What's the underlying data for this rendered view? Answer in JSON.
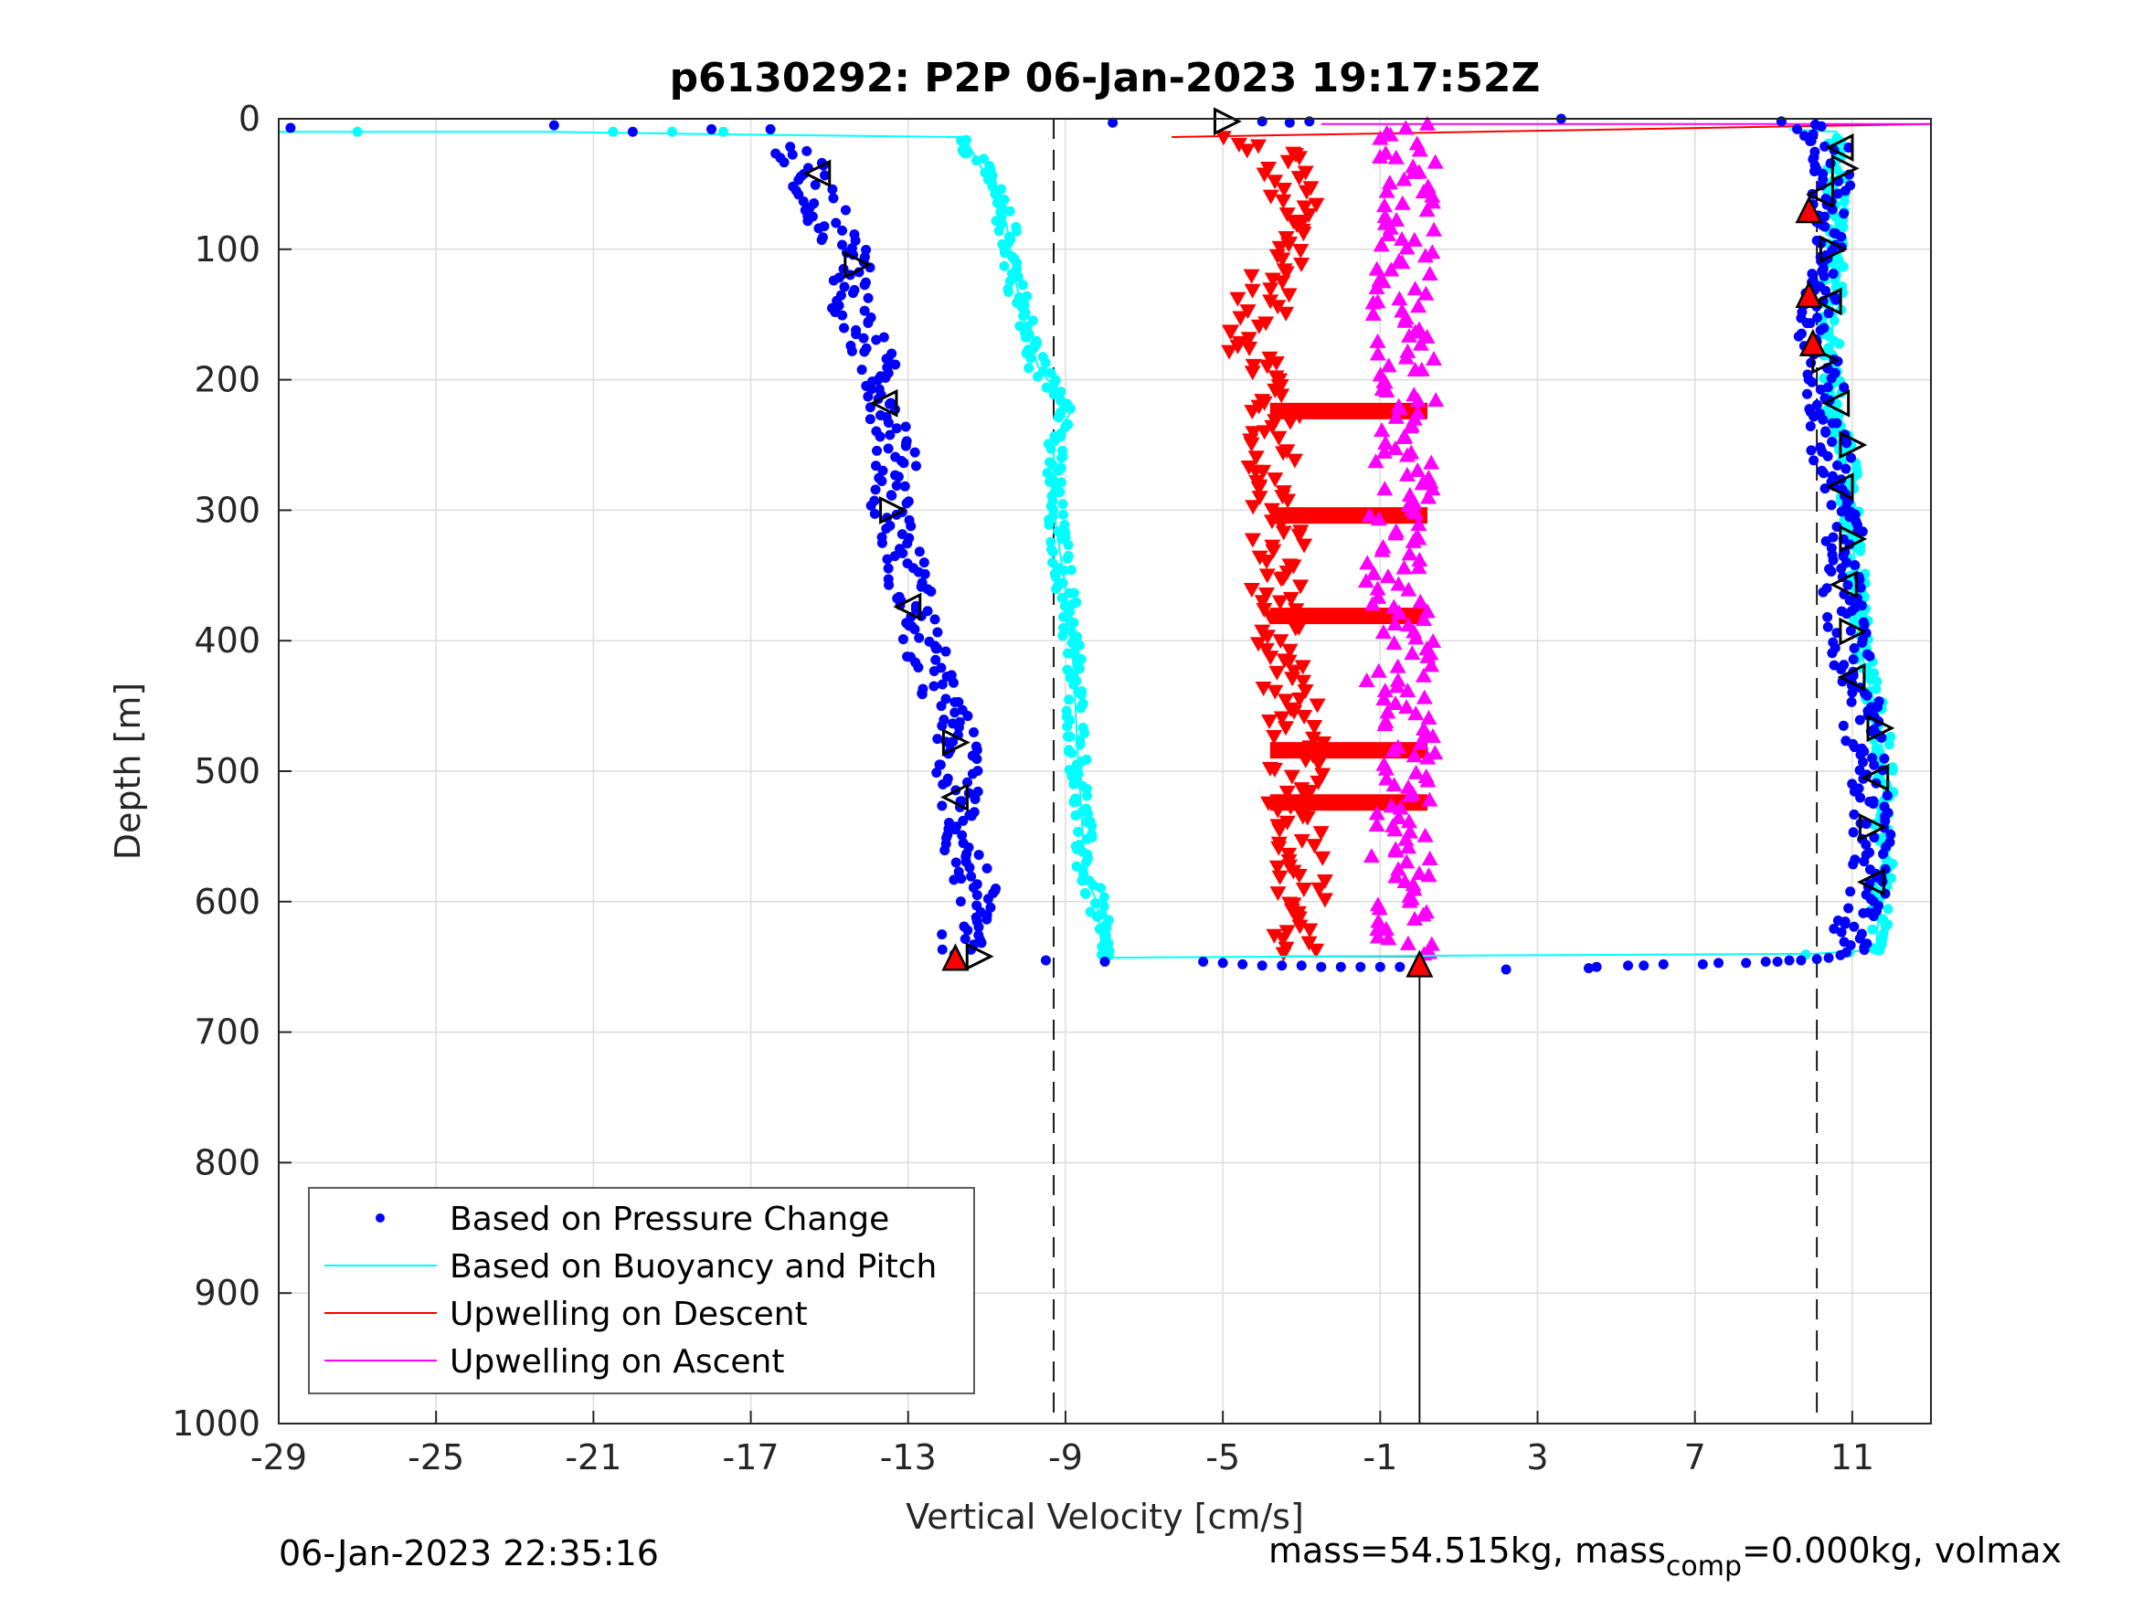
{
  "chart_data": {
    "type": "scatter",
    "title": "p6130292: P2P 06-Jan-2023 19:17:52Z",
    "xlabel": "Vertical Velocity [cm/s]",
    "ylabel": "Depth [m]",
    "xlim": [
      -29,
      13
    ],
    "ylim": [
      0,
      1000
    ],
    "y_reversed": true,
    "grid": true,
    "x_ticks": [
      -29,
      -25,
      -21,
      -17,
      -13,
      -9,
      -5,
      -1,
      3,
      7,
      11
    ],
    "y_ticks": [
      0,
      100,
      200,
      300,
      400,
      500,
      600,
      700,
      800,
      900,
      1000
    ],
    "legend_placement": "bottom-left",
    "colors": {
      "pressure": "#0000ff",
      "buoyancy": "#00ffff",
      "upwell_descent": "#ff0000",
      "upwell_ascent": "#ff00ff"
    },
    "reference_lines": {
      "dashed_x": [
        -9.3,
        10.1
      ],
      "solid_x": [
        0
      ],
      "solid_x_depth_range": [
        645,
        1000
      ]
    },
    "series": [
      {
        "name": "Based on Pressure Change",
        "descent": [
          [
            -28.7,
            7
          ],
          [
            -22,
            5
          ],
          [
            -20,
            10
          ],
          [
            -18,
            8
          ],
          [
            -16.5,
            8
          ],
          [
            -16,
            22
          ],
          [
            -15.5,
            45
          ],
          [
            -15,
            80
          ],
          [
            -14.5,
            100
          ],
          [
            -14.3,
            115
          ],
          [
            -14.5,
            145
          ],
          [
            -14,
            175
          ],
          [
            -13.7,
            200
          ],
          [
            -13.5,
            215
          ],
          [
            -13.3,
            250
          ],
          [
            -13.4,
            300
          ],
          [
            -13,
            350
          ],
          [
            -12.8,
            380
          ],
          [
            -12.5,
            420
          ],
          [
            -11.8,
            470
          ],
          [
            -11.7,
            520
          ],
          [
            -11.6,
            560
          ],
          [
            -11.3,
            590
          ],
          [
            -11.6,
            620
          ],
          [
            -11.7,
            640
          ]
        ],
        "ascent": [
          [
            -5.5,
            646
          ],
          [
            -3,
            648
          ],
          [
            0,
            650
          ],
          [
            2.2,
            650
          ],
          [
            4.5,
            649
          ],
          [
            7,
            648
          ],
          [
            9.5,
            646
          ],
          [
            10.9,
            640
          ],
          [
            10.9,
            620
          ],
          [
            11.4,
            600
          ],
          [
            11.5,
            550
          ],
          [
            11.4,
            500
          ],
          [
            11.2,
            450
          ],
          [
            10.9,
            400
          ],
          [
            10.7,
            350
          ],
          [
            10.8,
            300
          ],
          [
            10.4,
            250
          ],
          [
            10.3,
            200
          ],
          [
            10,
            160
          ],
          [
            10.2,
            120
          ],
          [
            10.3,
            80
          ],
          [
            10.5,
            50
          ],
          [
            10.5,
            20
          ],
          [
            9.7,
            5
          ]
        ]
      },
      {
        "name": "Based on Buoyancy and Pitch",
        "descent": [
          [
            -29,
            10
          ],
          [
            -22,
            10
          ],
          [
            -17.5,
            12
          ],
          [
            -11.7,
            14
          ],
          [
            -11.5,
            18
          ],
          [
            -11,
            45
          ],
          [
            -10.5,
            80
          ],
          [
            -10.3,
            120
          ],
          [
            -10,
            160
          ],
          [
            -9.7,
            190
          ],
          [
            -9.2,
            210
          ],
          [
            -8.8,
            220
          ],
          [
            -9.3,
            250
          ],
          [
            -9.3,
            300
          ],
          [
            -9.1,
            340
          ],
          [
            -8.9,
            380
          ],
          [
            -8.8,
            420
          ],
          [
            -8.7,
            480
          ],
          [
            -8.6,
            530
          ],
          [
            -8.5,
            580
          ],
          [
            -8.2,
            600
          ],
          [
            -8.1,
            630
          ],
          [
            -8.0,
            643
          ],
          [
            -3,
            642
          ],
          [
            3,
            641
          ],
          [
            10,
            640
          ],
          [
            11.6,
            637
          ]
        ],
        "ascent": [
          [
            11.6,
            637
          ],
          [
            11.7,
            600
          ],
          [
            11.8,
            560
          ],
          [
            11.8,
            500
          ],
          [
            11.7,
            460
          ],
          [
            11.3,
            420
          ],
          [
            11.2,
            380
          ],
          [
            11.0,
            320
          ],
          [
            10.9,
            270
          ],
          [
            10.5,
            220
          ],
          [
            10.5,
            180
          ],
          [
            10.5,
            140
          ],
          [
            10.6,
            100
          ],
          [
            10.6,
            60
          ],
          [
            10.6,
            30
          ],
          [
            10.6,
            10
          ],
          [
            9.4,
            8
          ]
        ]
      },
      {
        "name": "Upwelling on Descent",
        "profile": [
          [
            -5.2,
            15
          ],
          [
            -3.5,
            25
          ],
          [
            -3.3,
            60
          ],
          [
            -3.2,
            100
          ],
          [
            -4.0,
            140
          ],
          [
            -4.3,
            170
          ],
          [
            -3.8,
            200
          ],
          [
            -3.7,
            230
          ],
          [
            -3.8,
            280
          ],
          [
            -3.6,
            320
          ],
          [
            -3.6,
            360
          ],
          [
            -3.5,
            400
          ],
          [
            -3.3,
            440
          ],
          [
            -3.1,
            480
          ],
          [
            -3.2,
            520
          ],
          [
            -2.9,
            560
          ],
          [
            -3.0,
            600
          ],
          [
            -3.3,
            640
          ]
        ],
        "horizontal_bands_depth": [
          224,
          304,
          381,
          484,
          524
        ],
        "band_x_range": [
          -3.8,
          0.2
        ]
      },
      {
        "name": "Upwelling on Ascent",
        "profile": [
          [
            -0.4,
            640
          ],
          [
            -0.6,
            600
          ],
          [
            -0.4,
            560
          ],
          [
            -0.4,
            520
          ],
          [
            -0.2,
            480
          ],
          [
            -0.6,
            440
          ],
          [
            -0.4,
            400
          ],
          [
            -0.7,
            360
          ],
          [
            -0.7,
            320
          ],
          [
            -0.4,
            280
          ],
          [
            -0.2,
            240
          ],
          [
            -0.2,
            200
          ],
          [
            -0.4,
            160
          ],
          [
            -0.4,
            120
          ],
          [
            -0.4,
            80
          ],
          [
            -0.3,
            40
          ],
          [
            -0.2,
            5
          ]
        ]
      }
    ],
    "triangle_markers": [
      {
        "x": -15.3,
        "y": 42,
        "dir": "left"
      },
      {
        "x": -14.3,
        "y": 112,
        "dir": "right"
      },
      {
        "x": -13.6,
        "y": 218,
        "dir": "left"
      },
      {
        "x": -13.4,
        "y": 300,
        "dir": "right"
      },
      {
        "x": -13.0,
        "y": 374,
        "dir": "left"
      },
      {
        "x": -11.8,
        "y": 478,
        "dir": "right"
      },
      {
        "x": -11.8,
        "y": 520,
        "dir": "left"
      },
      {
        "x": -11.2,
        "y": 642,
        "dir": "right"
      },
      {
        "x": -4.9,
        "y": 2,
        "dir": "right"
      },
      {
        "x": 10.7,
        "y": 22,
        "dir": "left"
      },
      {
        "x": 10.8,
        "y": 38,
        "dir": "right"
      },
      {
        "x": 10.2,
        "y": 58,
        "dir": "left"
      },
      {
        "x": 10.5,
        "y": 100,
        "dir": "right"
      },
      {
        "x": 10.4,
        "y": 140,
        "dir": "left"
      },
      {
        "x": 10.3,
        "y": 185,
        "dir": "right"
      },
      {
        "x": 10.6,
        "y": 218,
        "dir": "left"
      },
      {
        "x": 11.0,
        "y": 250,
        "dir": "right"
      },
      {
        "x": 10.7,
        "y": 282,
        "dir": "left"
      },
      {
        "x": 11.0,
        "y": 322,
        "dir": "right"
      },
      {
        "x": 10.8,
        "y": 357,
        "dir": "left"
      },
      {
        "x": 11.0,
        "y": 393,
        "dir": "right"
      },
      {
        "x": 11.0,
        "y": 428,
        "dir": "left"
      },
      {
        "x": 11.7,
        "y": 467,
        "dir": "right"
      },
      {
        "x": 11.6,
        "y": 505,
        "dir": "left"
      },
      {
        "x": 11.5,
        "y": 543,
        "dir": "right"
      },
      {
        "x": 11.5,
        "y": 585,
        "dir": "left"
      }
    ],
    "red_up_triangles": [
      {
        "x": 9.9,
        "y": 70
      },
      {
        "x": 9.9,
        "y": 135
      },
      {
        "x": 10.0,
        "y": 172
      },
      {
        "x": -11.8,
        "y": 643
      },
      {
        "x": 0.0,
        "y": 648
      }
    ]
  },
  "legend": {
    "items": [
      "Based on Pressure Change",
      "Based on Buoyancy and Pitch",
      "Upwelling on Descent",
      "Upwelling on Ascent"
    ]
  },
  "footer": {
    "timestamp": "06-Jan-2023 22:35:16",
    "mass_text": "mass=54.515kg, mass",
    "comp_sub": "comp",
    "rest_text": "=0.000kg, volmax"
  }
}
